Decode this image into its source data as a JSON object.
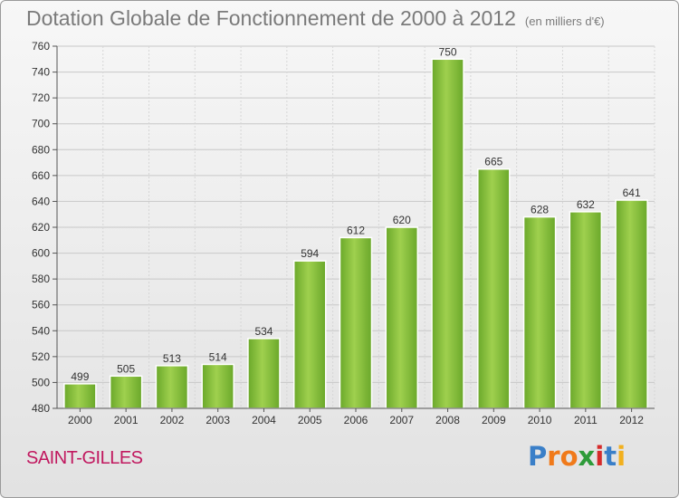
{
  "header": {
    "title": "Dotation Globale de Fonctionnement de 2000 à 2012",
    "subtitle": "(en milliers d'€)"
  },
  "footer": {
    "city": "SAINT-GILLES",
    "logo_letters": [
      "P",
      "r",
      "o",
      "x",
      "i",
      "t",
      "i"
    ],
    "logo_colors": [
      "#3a7fc8",
      "#f07a1a",
      "#f07a1a",
      "#2e9b3a",
      "#d62b2b",
      "#3a7fc8",
      "#f2b01e"
    ]
  },
  "chart_data": {
    "type": "bar",
    "categories": [
      "2000",
      "2001",
      "2002",
      "2003",
      "2004",
      "2005",
      "2006",
      "2007",
      "2008",
      "2009",
      "2010",
      "2011",
      "2012"
    ],
    "values": [
      499,
      505,
      513,
      514,
      534,
      594,
      612,
      620,
      750,
      665,
      628,
      632,
      641
    ],
    "ylim": [
      480,
      760
    ],
    "yticks": [
      480,
      500,
      520,
      540,
      560,
      580,
      600,
      620,
      640,
      660,
      680,
      700,
      720,
      740,
      760
    ],
    "grid": true,
    "bar_color": "#7dbb2f"
  }
}
